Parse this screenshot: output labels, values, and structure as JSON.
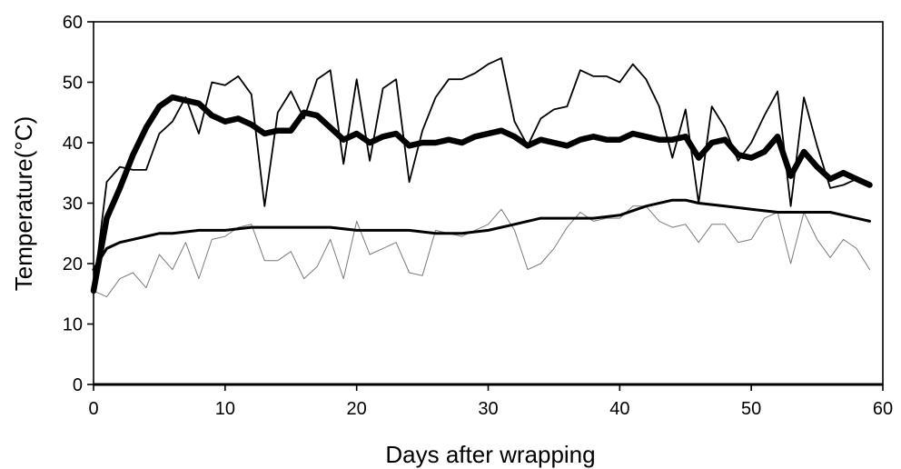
{
  "chart_data": {
    "type": "line",
    "xlabel": "Days after wrapping",
    "ylabel": "Temperature(°C)",
    "xlim": [
      0,
      60
    ],
    "ylim": [
      0,
      60
    ],
    "x_ticks": [
      0,
      10,
      20,
      30,
      40,
      50,
      60
    ],
    "y_ticks": [
      0,
      10,
      20,
      30,
      40,
      50,
      60
    ],
    "grid": false,
    "legend": "none",
    "series": [
      {
        "style": "thin-black",
        "color": "#000000",
        "x": [
          0,
          1,
          2,
          3,
          4,
          5,
          6,
          7,
          8,
          9,
          10,
          11,
          12,
          13,
          14,
          15,
          16,
          17,
          18,
          19,
          20,
          21,
          22,
          23,
          24,
          25,
          26,
          27,
          28,
          29,
          30,
          31,
          32,
          33,
          34,
          35,
          36,
          37,
          38,
          39,
          40,
          41,
          42,
          43,
          44,
          45,
          46,
          47,
          48,
          49,
          50,
          51,
          52,
          53,
          54,
          55,
          56,
          57,
          58,
          59
        ],
        "y": [
          15.5,
          33.5,
          36,
          35.5,
          35.5,
          41.5,
          43.5,
          47.5,
          41.5,
          50,
          49.5,
          51,
          48,
          29.5,
          45,
          48.5,
          44,
          50.5,
          52,
          36.5,
          50.5,
          37,
          49,
          50.5,
          33.5,
          42,
          47.5,
          50.5,
          50.5,
          51.5,
          53,
          54,
          43.5,
          39.5,
          44,
          45.5,
          46,
          52,
          51,
          51,
          50,
          53,
          50.5,
          46,
          37.5,
          45.5,
          30,
          46,
          42.5,
          37,
          40,
          44.5,
          48.5,
          29.5,
          47.5,
          39.5,
          32.5,
          33,
          34,
          33
        ]
      },
      {
        "style": "thick-black",
        "color": "#000000",
        "x": [
          0,
          1,
          2,
          3,
          4,
          5,
          6,
          7,
          8,
          9,
          10,
          11,
          12,
          13,
          14,
          15,
          16,
          17,
          18,
          19,
          20,
          21,
          22,
          23,
          24,
          25,
          26,
          27,
          28,
          29,
          30,
          31,
          32,
          33,
          34,
          35,
          36,
          37,
          38,
          39,
          40,
          41,
          42,
          43,
          44,
          45,
          46,
          47,
          48,
          49,
          50,
          51,
          52,
          53,
          54,
          55,
          56,
          57,
          58,
          59
        ],
        "y": [
          15.5,
          27.5,
          32.5,
          38,
          42.5,
          46,
          47.5,
          47,
          46.5,
          44.5,
          43.5,
          44,
          43,
          41.5,
          42,
          42,
          45,
          44.5,
          42.5,
          40.5,
          41.5,
          40,
          41,
          41.5,
          39.5,
          40,
          40,
          40.5,
          40,
          41,
          41.5,
          42,
          41,
          39.5,
          40.5,
          40,
          39.5,
          40.5,
          41,
          40.5,
          40.5,
          41.5,
          41,
          40.5,
          40.5,
          41,
          37.5,
          40,
          40.5,
          38,
          37.5,
          38.5,
          41,
          34.5,
          38.5,
          36,
          34,
          35,
          34,
          33
        ]
      },
      {
        "style": "medium-black",
        "color": "#000000",
        "x": [
          0,
          1,
          2,
          3,
          4,
          5,
          6,
          8,
          10,
          12,
          14,
          16,
          18,
          20,
          22,
          24,
          26,
          28,
          30,
          32,
          34,
          36,
          38,
          40,
          42,
          44,
          45,
          46,
          48,
          50,
          52,
          54,
          56,
          58,
          59
        ],
        "y": [
          19,
          22.5,
          23.5,
          24,
          24.5,
          25,
          25,
          25.5,
          25.5,
          26,
          26,
          26,
          26,
          25.5,
          25.5,
          25.5,
          25,
          25,
          25.5,
          26.5,
          27.5,
          27.5,
          27.5,
          28,
          29.5,
          30.5,
          30.5,
          30,
          29.5,
          29,
          28.5,
          28.5,
          28.5,
          27.5,
          27
        ]
      },
      {
        "style": "thin-grey",
        "color": "#7a7a7a",
        "x": [
          0,
          1,
          2,
          3,
          4,
          5,
          6,
          7,
          8,
          9,
          10,
          11,
          12,
          13,
          14,
          15,
          16,
          17,
          18,
          19,
          20,
          21,
          22,
          23,
          24,
          25,
          26,
          27,
          28,
          29,
          30,
          31,
          32,
          33,
          34,
          35,
          36,
          37,
          38,
          39,
          40,
          41,
          42,
          43,
          44,
          45,
          46,
          47,
          48,
          49,
          50,
          51,
          52,
          53,
          54,
          55,
          56,
          57,
          58,
          59
        ],
        "y": [
          15.5,
          14.5,
          17.5,
          18.5,
          16,
          21.5,
          19,
          23.5,
          17.5,
          24,
          24.5,
          26,
          26.5,
          20.5,
          20.5,
          22,
          17.5,
          19.5,
          24,
          17.5,
          27,
          21.5,
          22.5,
          23.5,
          18.5,
          18,
          25.5,
          25,
          24.5,
          25.5,
          26.5,
          29,
          25.5,
          19,
          20,
          22.5,
          26,
          28.5,
          27,
          27.5,
          27.5,
          29.5,
          29.5,
          27,
          26,
          26.5,
          23.5,
          26.5,
          26.5,
          23.5,
          24,
          27.5,
          28.5,
          20,
          28.5,
          24,
          21,
          24,
          22.5,
          19
        ]
      }
    ]
  }
}
